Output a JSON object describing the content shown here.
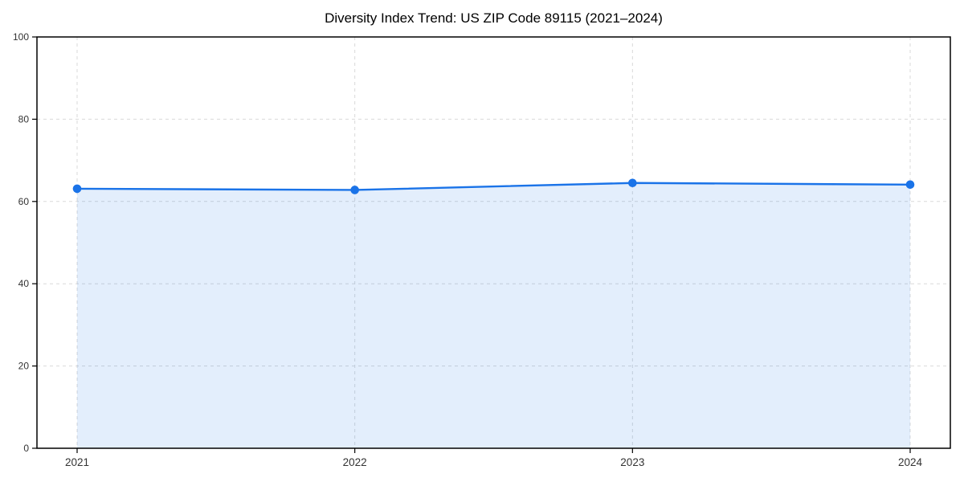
{
  "title": "Diversity Index Trend: US ZIP Code 89115 (2021–2024)",
  "chart_data": {
    "type": "area",
    "title": "Diversity Index Trend: US ZIP Code 89115 (2021–2024)",
    "x": [
      2021,
      2022,
      2023,
      2024
    ],
    "series": [
      {
        "name": "Diversity Index",
        "values": [
          63.1,
          62.8,
          64.5,
          64.1
        ]
      }
    ],
    "xlabel": "",
    "ylabel": "",
    "ylim": [
      0,
      100
    ],
    "yticks": [
      0,
      20,
      40,
      60,
      80,
      100
    ],
    "xticks": [
      2021,
      2022,
      2023,
      2024
    ],
    "grid": "dashed-both",
    "legend": "none",
    "marker": "circle",
    "colors": {
      "line": "#1a73e8",
      "fill": "#1a73e8",
      "fill_opacity": 0.12,
      "grid": "#d9d9d9",
      "spine": "#000000",
      "tick_label": "#333333",
      "title": "#000000",
      "background": "#ffffff"
    }
  }
}
